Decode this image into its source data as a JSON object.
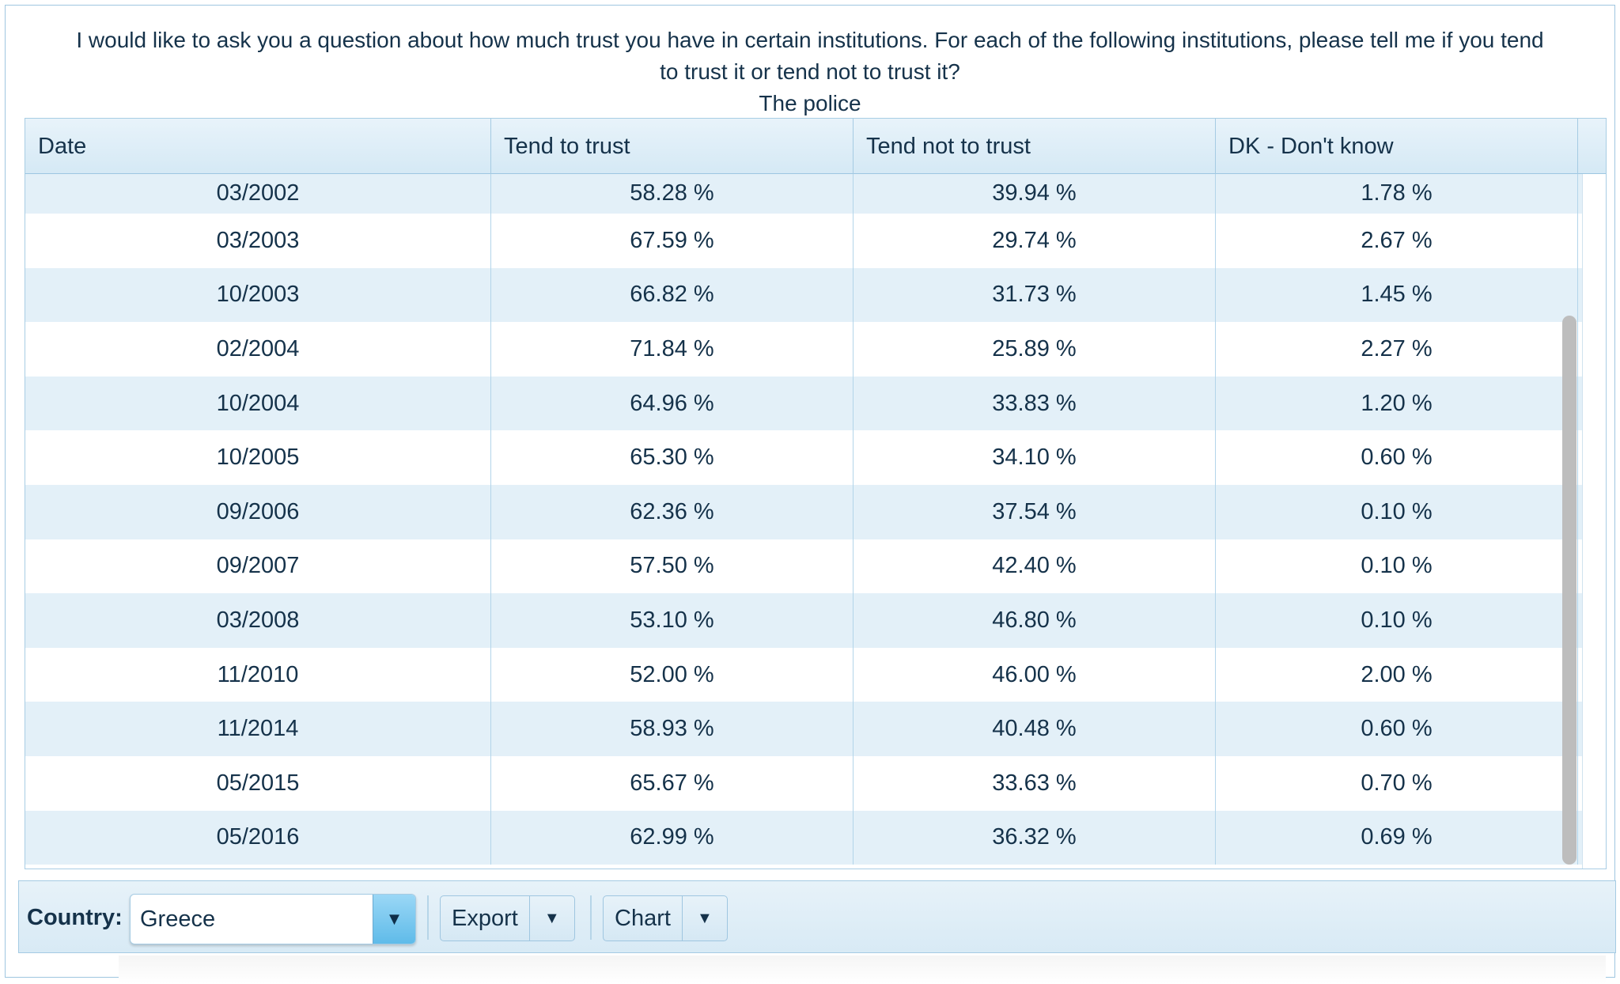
{
  "question": {
    "line1": "I would like to ask you a question about how much trust you have in certain institutions. For each of the following institutions, please tell me if you tend",
    "line2": "to trust it or tend not to trust it?",
    "subject": "The police"
  },
  "table": {
    "columns": [
      "Date",
      "Tend to trust",
      "Tend not to trust",
      "DK - Don't know"
    ],
    "rows": [
      [
        "03/2002",
        "58.28 %",
        "39.94 %",
        "1.78 %"
      ],
      [
        "03/2003",
        "67.59 %",
        "29.74 %",
        "2.67 %"
      ],
      [
        "10/2003",
        "66.82 %",
        "31.73 %",
        "1.45 %"
      ],
      [
        "02/2004",
        "71.84 %",
        "25.89 %",
        "2.27 %"
      ],
      [
        "10/2004",
        "64.96 %",
        "33.83 %",
        "1.20 %"
      ],
      [
        "10/2005",
        "65.30 %",
        "34.10 %",
        "0.60 %"
      ],
      [
        "09/2006",
        "62.36 %",
        "37.54 %",
        "0.10 %"
      ],
      [
        "09/2007",
        "57.50 %",
        "42.40 %",
        "0.10 %"
      ],
      [
        "03/2008",
        "53.10 %",
        "46.80 %",
        "0.10 %"
      ],
      [
        "11/2010",
        "52.00 %",
        "46.00 %",
        "2.00 %"
      ],
      [
        "11/2014",
        "58.93 %",
        "40.48 %",
        "0.60 %"
      ],
      [
        "05/2015",
        "65.67 %",
        "33.63 %",
        "0.70 %"
      ],
      [
        "05/2016",
        "62.99 %",
        "36.32 %",
        "0.69 %"
      ]
    ]
  },
  "toolbar": {
    "country_label": "Country:",
    "country_value": "Greece",
    "export_label": "Export",
    "chart_label": "Chart",
    "dropdown_glyph": "▼"
  },
  "colors": {
    "accent": "#5fbbe9",
    "row_alt": "#e3f0f8",
    "border": "#a5cbe3",
    "text": "#15324a"
  }
}
